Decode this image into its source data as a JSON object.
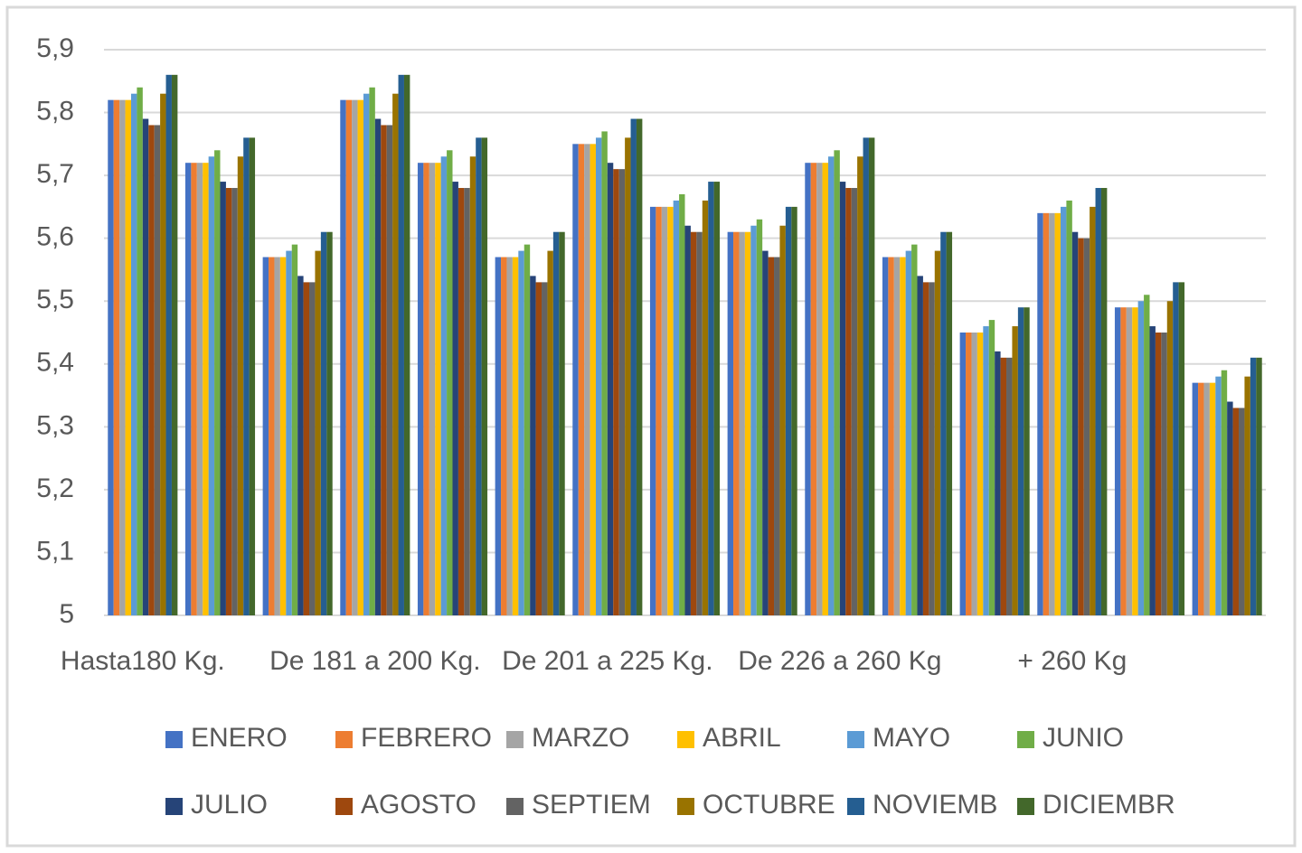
{
  "chart_data": {
    "type": "bar",
    "categories": [
      "Hasta180 Kg.",
      null,
      null,
      "De 181 a 200 Kg.",
      null,
      null,
      "De 201 a 225 Kg.",
      null,
      null,
      "De 226 a 260 Kg",
      null,
      null,
      "+ 260 Kg",
      null,
      null
    ],
    "series": [
      {
        "name": "ENERO",
        "color": "#4472c4",
        "values": [
          5.82,
          5.72,
          5.57,
          5.82,
          5.72,
          5.57,
          5.75,
          5.65,
          5.61,
          5.72,
          5.57,
          5.45,
          5.64,
          5.49,
          5.37
        ]
      },
      {
        "name": "FEBRERO",
        "color": "#ed7d31",
        "values": [
          5.82,
          5.72,
          5.57,
          5.82,
          5.72,
          5.57,
          5.75,
          5.65,
          5.61,
          5.72,
          5.57,
          5.45,
          5.64,
          5.49,
          5.37
        ]
      },
      {
        "name": "MARZO",
        "color": "#a5a5a5",
        "values": [
          5.82,
          5.72,
          5.57,
          5.82,
          5.72,
          5.57,
          5.75,
          5.65,
          5.61,
          5.72,
          5.57,
          5.45,
          5.64,
          5.49,
          5.37
        ]
      },
      {
        "name": "ABRIL",
        "color": "#ffc000",
        "values": [
          5.82,
          5.72,
          5.57,
          5.82,
          5.72,
          5.57,
          5.75,
          5.65,
          5.61,
          5.72,
          5.57,
          5.45,
          5.64,
          5.49,
          5.37
        ]
      },
      {
        "name": "MAYO",
        "color": "#5b9bd5",
        "values": [
          5.83,
          5.73,
          5.58,
          5.83,
          5.73,
          5.58,
          5.76,
          5.66,
          5.62,
          5.73,
          5.58,
          5.46,
          5.65,
          5.5,
          5.38
        ]
      },
      {
        "name": "JUNIO",
        "color": "#70ad47",
        "values": [
          5.84,
          5.74,
          5.59,
          5.84,
          5.74,
          5.59,
          5.77,
          5.67,
          5.63,
          5.74,
          5.59,
          5.47,
          5.66,
          5.51,
          5.39
        ]
      },
      {
        "name": "JULIO",
        "color": "#264478",
        "values": [
          5.79,
          5.69,
          5.54,
          5.79,
          5.69,
          5.54,
          5.72,
          5.62,
          5.58,
          5.69,
          5.54,
          5.42,
          5.61,
          5.46,
          5.34
        ]
      },
      {
        "name": "AGOSTO",
        "color": "#9e480e",
        "values": [
          5.78,
          5.68,
          5.53,
          5.78,
          5.68,
          5.53,
          5.71,
          5.61,
          5.57,
          5.68,
          5.53,
          5.41,
          5.6,
          5.45,
          5.33
        ]
      },
      {
        "name": "SEPTIEM",
        "color": "#636363",
        "values": [
          5.78,
          5.68,
          5.53,
          5.78,
          5.68,
          5.53,
          5.71,
          5.61,
          5.57,
          5.68,
          5.53,
          5.41,
          5.6,
          5.45,
          5.33
        ]
      },
      {
        "name": "OCTUBRE",
        "color": "#997300",
        "values": [
          5.83,
          5.73,
          5.58,
          5.83,
          5.73,
          5.58,
          5.76,
          5.66,
          5.62,
          5.73,
          5.58,
          5.46,
          5.65,
          5.5,
          5.38
        ]
      },
      {
        "name": "NOVIEMB",
        "color": "#255e91",
        "values": [
          5.86,
          5.76,
          5.61,
          5.86,
          5.76,
          5.61,
          5.79,
          5.69,
          5.65,
          5.76,
          5.61,
          5.49,
          5.68,
          5.53,
          5.41
        ]
      },
      {
        "name": "DICIEMBR",
        "color": "#43682b",
        "values": [
          5.86,
          5.76,
          5.61,
          5.86,
          5.76,
          5.61,
          5.79,
          5.69,
          5.65,
          5.76,
          5.61,
          5.49,
          5.68,
          5.53,
          5.41
        ]
      }
    ],
    "ylim": [
      5,
      5.9
    ],
    "yticks": [
      5,
      {
        "value": 5.1,
        "label": "5,1"
      },
      {
        "value": 5.2,
        "label": "5,2"
      },
      {
        "value": 5.3,
        "label": "5,3"
      },
      {
        "value": 5.4,
        "label": "5,4"
      },
      {
        "value": 5.5,
        "label": "5,5"
      },
      {
        "value": 5.6,
        "label": "5,6"
      },
      {
        "value": 5.7,
        "label": "5,7"
      },
      {
        "value": 5.8,
        "label": "5,8"
      },
      {
        "value": 5.9,
        "label": "5,9"
      }
    ],
    "grid": true,
    "legend": "bottom"
  }
}
